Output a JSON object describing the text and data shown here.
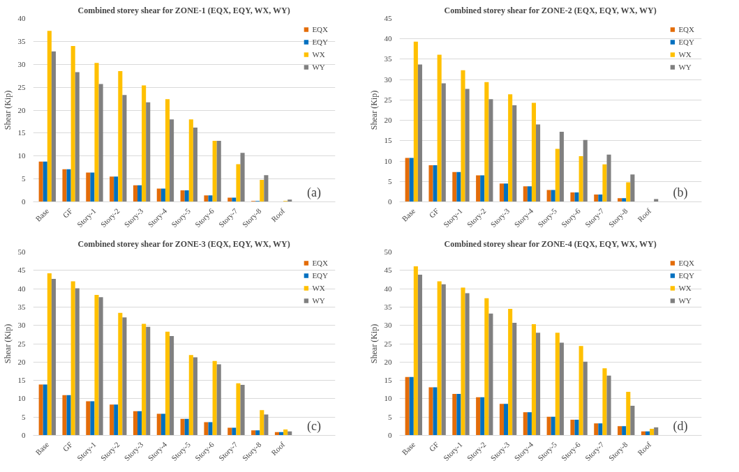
{
  "chart_data": [
    {
      "type": "bar",
      "title": "Combined storey shear for ZONE-1 (EQX, EQY, WX, WY)",
      "ylabel": "Shear (Kip)",
      "annotations": [
        "(a)"
      ],
      "categories": [
        "Base",
        "GF",
        "Story-1",
        "Story-2",
        "Story-3",
        "Story-4",
        "Story-5",
        "Story-6",
        "Story-7",
        "Story-8",
        "Roof"
      ],
      "ylim": [
        0,
        40
      ],
      "yticks": [
        0,
        5,
        10,
        15,
        20,
        25,
        30,
        35,
        40
      ],
      "grid": "y",
      "legend": "top right",
      "series": [
        {
          "name": "EQX",
          "color": "#e36c09",
          "values": [
            8.8,
            7.1,
            6.4,
            5.5,
            3.6,
            2.9,
            2.5,
            1.4,
            0.9,
            0.2,
            0
          ]
        },
        {
          "name": "EQY",
          "color": "#0070c0",
          "values": [
            8.8,
            7.1,
            6.4,
            5.5,
            3.6,
            2.9,
            2.5,
            1.4,
            0.9,
            0.2,
            0
          ]
        },
        {
          "name": "WX",
          "color": "#ffc000",
          "values": [
            37.3,
            34.0,
            30.3,
            28.5,
            25.4,
            22.4,
            18.0,
            13.3,
            8.2,
            4.8,
            0.2
          ]
        },
        {
          "name": "WY",
          "color": "#808080",
          "values": [
            32.8,
            28.3,
            25.7,
            23.3,
            21.7,
            18.0,
            16.2,
            13.3,
            10.7,
            5.8,
            0.5
          ]
        }
      ]
    },
    {
      "type": "bar",
      "title": "Combined storey shear for ZONE-2 (EQX, EQY, WX, WY)",
      "ylabel": "Shear (Kip)",
      "annotations": [
        "(b)"
      ],
      "categories": [
        "Base",
        "GF",
        "Story-1",
        "Story-2",
        "Story-3",
        "Story-4",
        "Story-5",
        "Story-6",
        "Story-7",
        "Story-8",
        "Roof"
      ],
      "ylim": [
        0,
        45
      ],
      "yticks": [
        0,
        5,
        10,
        15,
        20,
        25,
        30,
        35,
        40,
        45
      ],
      "grid": "y",
      "legend": "top right",
      "series": [
        {
          "name": "EQX",
          "color": "#e36c09",
          "values": [
            10.8,
            9.0,
            7.3,
            6.5,
            4.5,
            3.8,
            2.9,
            2.3,
            1.8,
            0.9,
            0
          ]
        },
        {
          "name": "EQY",
          "color": "#0070c0",
          "values": [
            10.8,
            9.0,
            7.3,
            6.5,
            4.5,
            3.8,
            2.9,
            2.3,
            1.8,
            0.9,
            0
          ]
        },
        {
          "name": "WX",
          "color": "#ffc000",
          "values": [
            39.3,
            36.1,
            32.3,
            29.4,
            26.4,
            24.3,
            13.0,
            11.2,
            9.2,
            4.8,
            0
          ]
        },
        {
          "name": "WY",
          "color": "#808080",
          "values": [
            33.7,
            29.1,
            27.7,
            25.2,
            23.7,
            19.0,
            17.2,
            15.2,
            11.6,
            6.7,
            0.7
          ]
        }
      ]
    },
    {
      "type": "bar",
      "title": "Combined storey shear for ZONE-3 (EQX, EQY, WX, WY)",
      "ylabel": "Shear (Kip)",
      "annotations": [
        "(c)"
      ],
      "categories": [
        "Base",
        "GF",
        "Story-1",
        "Story-2",
        "Story-3",
        "Story-4",
        "Story-5",
        "Story-6",
        "Story-7",
        "Story-8",
        "Roof"
      ],
      "ylim": [
        0,
        50
      ],
      "yticks": [
        0,
        5,
        10,
        15,
        20,
        25,
        30,
        35,
        40,
        45,
        50
      ],
      "grid": "y",
      "legend": "top right",
      "series": [
        {
          "name": "EQX",
          "color": "#e36c09",
          "values": [
            13.9,
            11.0,
            9.3,
            8.4,
            6.6,
            5.9,
            4.5,
            3.6,
            2.1,
            1.4,
            0.9
          ]
        },
        {
          "name": "EQY",
          "color": "#0070c0",
          "values": [
            13.9,
            11.0,
            9.3,
            8.4,
            6.6,
            5.9,
            4.5,
            3.6,
            2.1,
            1.4,
            0.9
          ]
        },
        {
          "name": "WX",
          "color": "#ffc000",
          "values": [
            44.2,
            42.0,
            38.3,
            33.4,
            30.4,
            28.3,
            21.9,
            20.3,
            14.2,
            6.9,
            1.6
          ]
        },
        {
          "name": "WY",
          "color": "#808080",
          "values": [
            42.7,
            40.1,
            37.7,
            32.2,
            29.6,
            27.1,
            21.3,
            19.4,
            13.8,
            5.7,
            1.1
          ]
        }
      ]
    },
    {
      "type": "bar",
      "title": "Combined storey shear for ZONE-4 (EQX, EQY, WX, WY)",
      "ylabel": "Shear (Kip)",
      "annotations": [
        "(d)"
      ],
      "categories": [
        "Base",
        "GF",
        "Story-1",
        "Story-2",
        "Story-3",
        "Story-4",
        "Story-5",
        "Story-6",
        "Story-7",
        "Story-8",
        "Roof"
      ],
      "ylim": [
        0,
        50
      ],
      "yticks": [
        0,
        5,
        10,
        15,
        20,
        25,
        30,
        35,
        40,
        45,
        50
      ],
      "grid": "y",
      "legend": "top right",
      "series": [
        {
          "name": "EQX",
          "color": "#e36c09",
          "values": [
            15.9,
            13.1,
            11.3,
            10.4,
            8.6,
            6.3,
            5.1,
            4.3,
            3.3,
            2.5,
            1.1
          ]
        },
        {
          "name": "EQY",
          "color": "#0070c0",
          "values": [
            15.9,
            13.1,
            11.3,
            10.4,
            8.6,
            6.3,
            5.1,
            4.3,
            3.3,
            2.5,
            1.1
          ]
        },
        {
          "name": "WX",
          "color": "#ffc000",
          "values": [
            46.1,
            42.0,
            40.3,
            37.4,
            34.5,
            30.3,
            28.0,
            24.4,
            18.3,
            11.9,
            1.8
          ]
        },
        {
          "name": "WY",
          "color": "#808080",
          "values": [
            43.8,
            41.2,
            38.8,
            33.2,
            30.7,
            28.0,
            25.3,
            20.1,
            16.3,
            8.1,
            2.2
          ]
        }
      ]
    }
  ]
}
